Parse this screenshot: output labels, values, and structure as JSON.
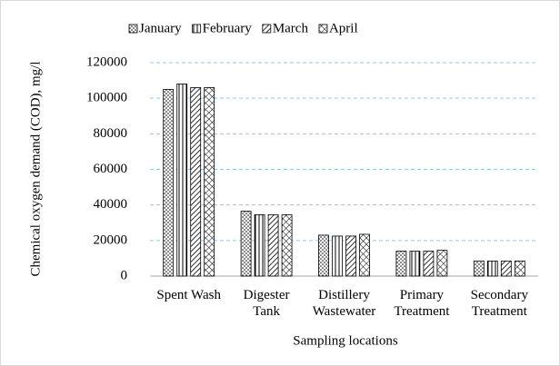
{
  "chart_data": {
    "type": "bar",
    "y_label": "Chemical oxygen demand (COD), mg/l",
    "x_label": "Sampling locations",
    "categories": [
      [
        "Spent Wash"
      ],
      [
        "Digester",
        "Tank"
      ],
      [
        "Distillery",
        "Wastewater"
      ],
      [
        "Primary",
        "Treatment"
      ],
      [
        "Secondary",
        "Treatment"
      ]
    ],
    "series": [
      {
        "name": "January",
        "pattern": "dots",
        "values": [
          105000,
          36500,
          23000,
          14000,
          8500
        ]
      },
      {
        "name": "February",
        "pattern": "vertical",
        "values": [
          108000,
          34500,
          22500,
          14000,
          8500
        ]
      },
      {
        "name": "March",
        "pattern": "diagonal",
        "values": [
          106000,
          34500,
          22500,
          14000,
          8500
        ]
      },
      {
        "name": "April",
        "pattern": "crosshatch",
        "values": [
          106000,
          34500,
          23500,
          14500,
          8500
        ]
      }
    ],
    "ylim": [
      0,
      120000
    ],
    "yticks": [
      0,
      20000,
      40000,
      60000,
      80000,
      100000,
      120000
    ],
    "grid": true,
    "legend": "top"
  }
}
